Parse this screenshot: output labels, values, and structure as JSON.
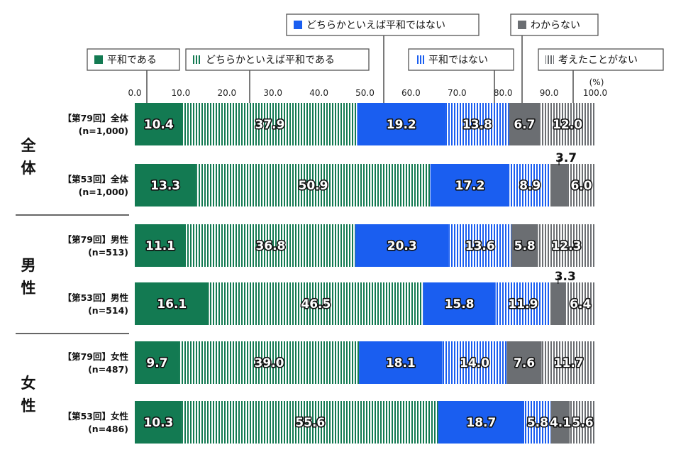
{
  "chart_data": {
    "type": "bar",
    "orientation": "horizontal",
    "stacked": true,
    "unit": "(%)",
    "xlim": [
      0,
      100
    ],
    "ticks": [
      "0.0",
      "10.0",
      "20.0",
      "30.0",
      "40.0",
      "50.0",
      "60.0",
      "70.0",
      "80.0",
      "90.0",
      "100.0"
    ],
    "groups": [
      {
        "label_lines": [
          "全",
          "体"
        ],
        "rows": [
          0,
          1
        ]
      },
      {
        "label_lines": [
          "男",
          "性"
        ],
        "rows": [
          2,
          3
        ]
      },
      {
        "label_lines": [
          "女",
          "性"
        ],
        "rows": [
          4,
          5
        ]
      }
    ],
    "categories": [
      {
        "line1": "【第79回】全体",
        "line2": "(n=1,000)"
      },
      {
        "line1": "【第53回】全体",
        "line2": "(n=1,000)"
      },
      {
        "line1": "【第79回】男性",
        "line2": "(n=513)"
      },
      {
        "line1": "【第53回】男性",
        "line2": "(n=514)"
      },
      {
        "line1": "【第79回】女性",
        "line2": "(n=487)"
      },
      {
        "line1": "【第53回】女性",
        "line2": "(n=486)"
      }
    ],
    "series": [
      {
        "name": "平和である",
        "color": "#137a52",
        "pattern": "solid",
        "values": [
          10.4,
          13.3,
          11.1,
          16.1,
          9.7,
          10.3
        ]
      },
      {
        "name": "どちらかといえば平和である",
        "color": "#137a52",
        "pattern": "stripe",
        "values": [
          37.9,
          50.9,
          36.8,
          46.5,
          39.0,
          55.6
        ]
      },
      {
        "name": "どちらかといえば平和ではない",
        "color": "#1a5ef0",
        "pattern": "solid",
        "values": [
          19.2,
          17.2,
          20.3,
          15.8,
          18.1,
          18.7
        ]
      },
      {
        "name": "平和ではない",
        "color": "#1a5ef0",
        "pattern": "stripe",
        "values": [
          13.8,
          8.9,
          13.6,
          11.9,
          14.0,
          5.8
        ]
      },
      {
        "name": "わからない",
        "color": "#6b6e72",
        "pattern": "solid",
        "values": [
          6.7,
          3.7,
          5.8,
          3.3,
          7.6,
          4.1
        ]
      },
      {
        "name": "考えたことがない",
        "color": "#6b6e72",
        "pattern": "stripe",
        "values": [
          12.0,
          6.0,
          12.3,
          6.4,
          11.7,
          5.6
        ]
      }
    ],
    "value_labels": [
      [
        "10.4",
        "37.9",
        "19.2",
        "13.8",
        "6.7",
        "12.0"
      ],
      [
        "13.3",
        "50.9",
        "17.2",
        "8.9",
        "3.7",
        "6.0"
      ],
      [
        "11.1",
        "36.8",
        "20.3",
        "13.6",
        "5.8",
        "12.3"
      ],
      [
        "16.1",
        "46.5",
        "15.8",
        "11.9",
        "3.3",
        "6.4"
      ],
      [
        "9.7",
        "39.0",
        "18.1",
        "14.0",
        "7.6",
        "11.7"
      ],
      [
        "10.3",
        "55.6",
        "18.7",
        "5.8",
        "4.1",
        "5.6"
      ]
    ],
    "legend_position": "top",
    "grid": false
  }
}
